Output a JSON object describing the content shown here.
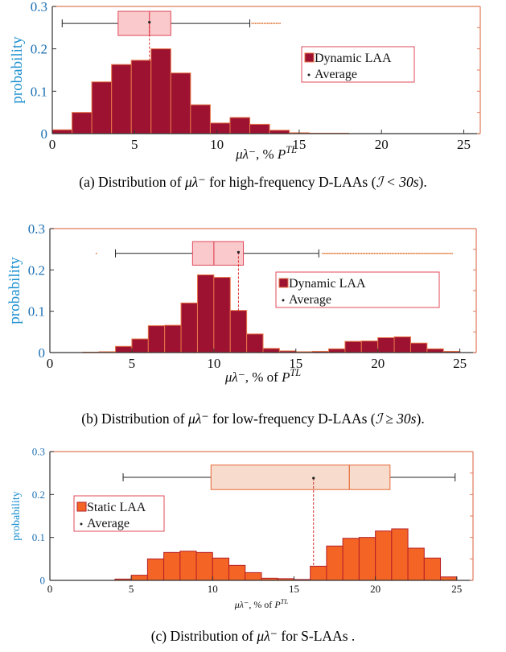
{
  "chart_data": [
    {
      "type": "bar",
      "id": "a",
      "xlim": [
        0,
        26
      ],
      "ylim": [
        0,
        0.3
      ],
      "xticks": [
        "0",
        "5",
        "10",
        "15",
        "20",
        "25"
      ],
      "yticks": [
        "0",
        "0.1",
        "0.2",
        "0.3"
      ],
      "ylabel": "probability",
      "xlabel": "μλ⁻, % PTL",
      "bin_edges": [
        0,
        1.2,
        2.4,
        3.6,
        4.8,
        6.0,
        7.2,
        8.4,
        9.6,
        10.8,
        12.0,
        13.2,
        14.4,
        15.6,
        16.8,
        18.0
      ],
      "values": [
        0.009,
        0.05,
        0.122,
        0.163,
        0.173,
        0.2,
        0.143,
        0.068,
        0.025,
        0.038,
        0.022,
        0.008,
        0.002,
        0.001,
        0.001
      ],
      "bar_color": "#9d1230",
      "edge_color": "#e8764a",
      "boxplot": {
        "whisker_low": 0.6,
        "q1": 4.0,
        "median": 5.9,
        "q3": 7.2,
        "whisker_high": 12.0,
        "outliers_from": 12.1,
        "outliers_to": 13.8,
        "average": 5.9,
        "y": 0.26,
        "fill": "#f9c9cc",
        "edge": "#e0485a"
      },
      "legend": {
        "placement": "upper-middle",
        "items": [
          {
            "label": "Dynamic LAA",
            "kind": "patch"
          },
          {
            "label": "Average",
            "kind": "dot"
          }
        ]
      },
      "caption": {
        "prefix": "(a) Distribution of ",
        "sym": "μλ⁻",
        "mid": " for high-frequency D-LAAs (",
        "cond": "ℐ < 30s",
        "suffix": ")."
      }
    },
    {
      "type": "bar",
      "id": "b",
      "xlim": [
        0,
        26
      ],
      "ylim": [
        0,
        0.3
      ],
      "xticks": [
        "0",
        "5",
        "10",
        "15",
        "20",
        "25"
      ],
      "yticks": [
        "0",
        "0.1",
        "0.2",
        "0.3"
      ],
      "ylabel": "probability",
      "xlabel": "μλ⁻, % of PTL",
      "bin_edges": [
        2.0,
        3.0,
        4.0,
        5.0,
        6.0,
        7.0,
        8.0,
        9.0,
        10.0,
        11.0,
        12.0,
        13.0,
        14.0,
        15.0,
        16.0,
        17.0,
        18.0,
        19.0,
        20.0,
        21.0,
        22.0,
        23.0,
        24.0,
        25.0
      ],
      "values": [
        0.001,
        0.002,
        0.015,
        0.033,
        0.065,
        0.066,
        0.12,
        0.188,
        0.182,
        0.102,
        0.045,
        0.01,
        0.004,
        0.002,
        0.003,
        0.009,
        0.027,
        0.028,
        0.036,
        0.038,
        0.023,
        0.009,
        0.003
      ],
      "bar_color": "#9d1230",
      "edge_color": "#e8764a",
      "boxplot": {
        "whisker_low": 4.0,
        "q1": 8.7,
        "median": 10.0,
        "q3": 11.8,
        "whisker_high": 16.4,
        "outliers_from": 16.6,
        "outliers_to": 24.5,
        "outlier_left": 2.8,
        "average": 11.5,
        "y": 0.24,
        "fill": "#f9c9cc",
        "edge": "#e0485a"
      },
      "legend": {
        "placement": "right-middle",
        "items": [
          {
            "label": "Dynamic LAA",
            "kind": "patch"
          },
          {
            "label": "Average",
            "kind": "dot"
          }
        ]
      },
      "caption": {
        "prefix": "(b) Distribution of ",
        "sym": "μλ⁻",
        "mid": " for low-frequency D-LAAs (",
        "cond": "ℐ ≥ 30s",
        "suffix": ")."
      }
    },
    {
      "type": "bar",
      "id": "c",
      "xlim": [
        0,
        26
      ],
      "ylim": [
        0,
        0.3
      ],
      "xticks": [
        "0",
        "5",
        "10",
        "15",
        "20",
        "25"
      ],
      "yticks": [
        "0",
        "0.1",
        "0.2",
        "0.3"
      ],
      "ylabel": "probability",
      "xlabel": "μλ⁻, % of PTL",
      "bin_edges": [
        4.0,
        5.0,
        6.0,
        7.0,
        8.0,
        9.0,
        10.0,
        11.0,
        12.0,
        13.0,
        14.0,
        15.0,
        16.0,
        17.0,
        18.0,
        19.0,
        20.0,
        21.0,
        22.0,
        23.0,
        24.0,
        25.0
      ],
      "values": [
        0.003,
        0.012,
        0.05,
        0.065,
        0.068,
        0.065,
        0.052,
        0.035,
        0.018,
        0.005,
        0.004,
        0.002,
        0.033,
        0.08,
        0.098,
        0.1,
        0.115,
        0.12,
        0.075,
        0.052,
        0.008
      ],
      "bar_color": "#f46424",
      "edge_color": "#b5202a",
      "boxplot": {
        "whisker_low": 4.5,
        "q1": 9.9,
        "median": 18.4,
        "q3": 20.9,
        "whisker_high": 24.9,
        "average": 16.2,
        "y": 0.24,
        "fill": "#f7dccd",
        "edge": "#e76836"
      },
      "legend": {
        "placement": "left-middle",
        "items": [
          {
            "label": "Static LAA",
            "kind": "patch"
          },
          {
            "label": "Average",
            "kind": "dot"
          }
        ]
      },
      "caption": {
        "prefix": "(c) Distribution of ",
        "sym": "μλ⁻",
        "mid": " for S-LAAs ",
        "cond": "",
        "suffix": "."
      }
    }
  ]
}
